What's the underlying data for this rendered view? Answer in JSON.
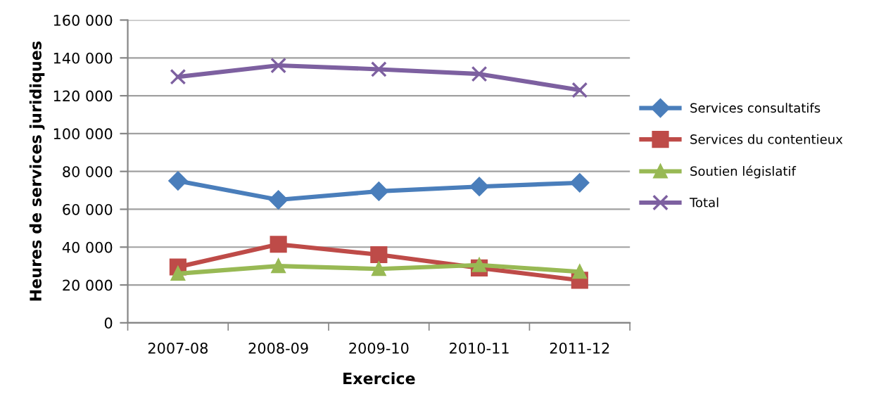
{
  "chart_data": {
    "type": "line",
    "xlabel": "Exercice",
    "ylabel": "Heures de services juridiques",
    "categories": [
      "2007-08",
      "2008-09",
      "2009-10",
      "2010-11",
      "2011-12"
    ],
    "series": [
      {
        "name": "Services consultatifs",
        "color": "#4a7ebb",
        "marker": "diamond",
        "values": [
          75000,
          65000,
          69500,
          72000,
          74000
        ]
      },
      {
        "name": "Services du contentieux",
        "color": "#be4b48",
        "marker": "square",
        "values": [
          29500,
          41500,
          36000,
          29000,
          22500
        ]
      },
      {
        "name": "Soutien législatif",
        "color": "#98b954",
        "marker": "triangle",
        "values": [
          26000,
          30000,
          28500,
          30500,
          27000
        ]
      },
      {
        "name": "Total",
        "color": "#7d60a0",
        "marker": "cross",
        "values": [
          130000,
          136000,
          134000,
          131500,
          123000
        ]
      }
    ],
    "ylim": [
      0,
      160000
    ],
    "yticks": [
      {
        "value": 0,
        "label": "0"
      },
      {
        "value": 20000,
        "label": "20 000"
      },
      {
        "value": 40000,
        "label": "40 000"
      },
      {
        "value": 60000,
        "label": "60 000"
      },
      {
        "value": 80000,
        "label": "80 000"
      },
      {
        "value": 100000,
        "label": "100 000"
      },
      {
        "value": 120000,
        "label": "120 000"
      },
      {
        "value": 140000,
        "label": "140 000"
      },
      {
        "value": 160000,
        "label": "160 000"
      }
    ],
    "grid": "y",
    "legend": "right",
    "line_style": "solid"
  }
}
